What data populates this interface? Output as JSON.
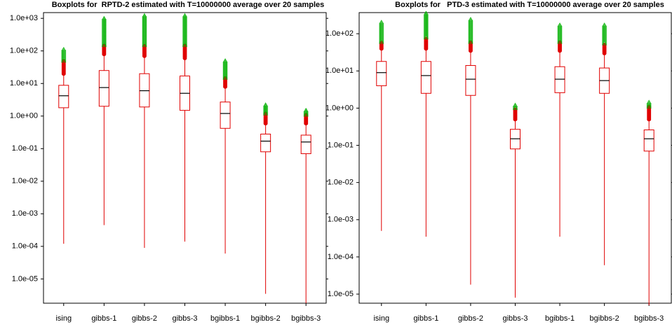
{
  "chart_data": [
    {
      "type": "boxplot",
      "title": "Boxplots for  RPTD-2 estimated with T=10000000 average over 20 samples",
      "log_y": true,
      "color": "#e00000",
      "median_color": "#000000",
      "extreme_color": "#00b000",
      "categories": [
        "ising",
        "gibbs-1",
        "gibbs-2",
        "gibbs-3",
        "bgibbs-1",
        "bgibbs-2",
        "bgibbs-3"
      ],
      "whisker_low": [
        0.00012,
        0.00045,
        9e-05,
        0.00014,
        6e-05,
        3.5e-06,
        1.8e-06
      ],
      "q1": [
        1.8,
        2,
        1.9,
        1.5,
        0.42,
        0.08,
        0.07
      ],
      "median": [
        4.2,
        7.5,
        6,
        5,
        1.2,
        0.17,
        0.16
      ],
      "q3": [
        8.8,
        25,
        20,
        17,
        2.7,
        0.28,
        0.26
      ],
      "whisker_high": [
        20,
        80,
        70,
        60,
        8,
        0.6,
        0.6
      ],
      "outlier_high": [
        50,
        150,
        150,
        150,
        15,
        1.2,
        1.1
      ],
      "extreme_high": [
        120,
        1000,
        1200,
        1200,
        50,
        2.2,
        1.5
      ],
      "ylim": [
        1.8e-06,
        1500
      ],
      "yticks": [
        {
          "value": 1000,
          "label": "1.0e+03"
        },
        {
          "value": 100,
          "label": "1.0e+02"
        },
        {
          "value": 10,
          "label": "1.0e+01"
        },
        {
          "value": 1,
          "label": "1.0e+00"
        },
        {
          "value": 0.1,
          "label": "1.0e-01"
        },
        {
          "value": 0.01,
          "label": "1.0e-02"
        },
        {
          "value": 0.001,
          "label": "1.0e-03"
        },
        {
          "value": 0.0001,
          "label": "1.0e-04"
        },
        {
          "value": 1e-05,
          "label": "1.0e-05"
        }
      ]
    },
    {
      "type": "boxplot",
      "title": "Boxplots for   PTD-3 estimated with T=10000000 average over 20 samples",
      "log_y": true,
      "color": "#e00000",
      "median_color": "#000000",
      "extreme_color": "#00b000",
      "categories": [
        "ising",
        "gibbs-1",
        "gibbs-2",
        "gibbs-3",
        "bgibbs-1",
        "bgibbs-2",
        "bgibbs-3"
      ],
      "whisker_low": [
        0.0005,
        0.00035,
        1.8e-05,
        8e-06,
        0.00035,
        6e-05,
        5e-06
      ],
      "q1": [
        4,
        2.5,
        2.2,
        0.08,
        2.6,
        2.5,
        0.07
      ],
      "median": [
        9,
        7.5,
        6,
        0.15,
        6,
        5.5,
        0.15
      ],
      "q3": [
        18,
        18,
        14,
        0.27,
        13,
        12,
        0.26
      ],
      "whisker_high": [
        40,
        40,
        35,
        0.5,
        35,
        30,
        0.5
      ],
      "outlier_high": [
        60,
        80,
        60,
        1,
        60,
        55,
        1.1
      ],
      "extreme_high": [
        220,
        350,
        250,
        1.2,
        180,
        180,
        1.5
      ],
      "ylim": [
        5.7e-06,
        370
      ],
      "yticks": [
        {
          "value": 100,
          "label": "1.0e+02"
        },
        {
          "value": 10,
          "label": "1.0e+01"
        },
        {
          "value": 1,
          "label": "1.0e+00"
        },
        {
          "value": 0.1,
          "label": "1.0e-01"
        },
        {
          "value": 0.01,
          "label": "1.0e-02"
        },
        {
          "value": 0.001,
          "label": "1.0e-03"
        },
        {
          "value": 0.0001,
          "label": "1.0e-04"
        },
        {
          "value": 1e-05,
          "label": "1.0e-05"
        }
      ]
    }
  ]
}
